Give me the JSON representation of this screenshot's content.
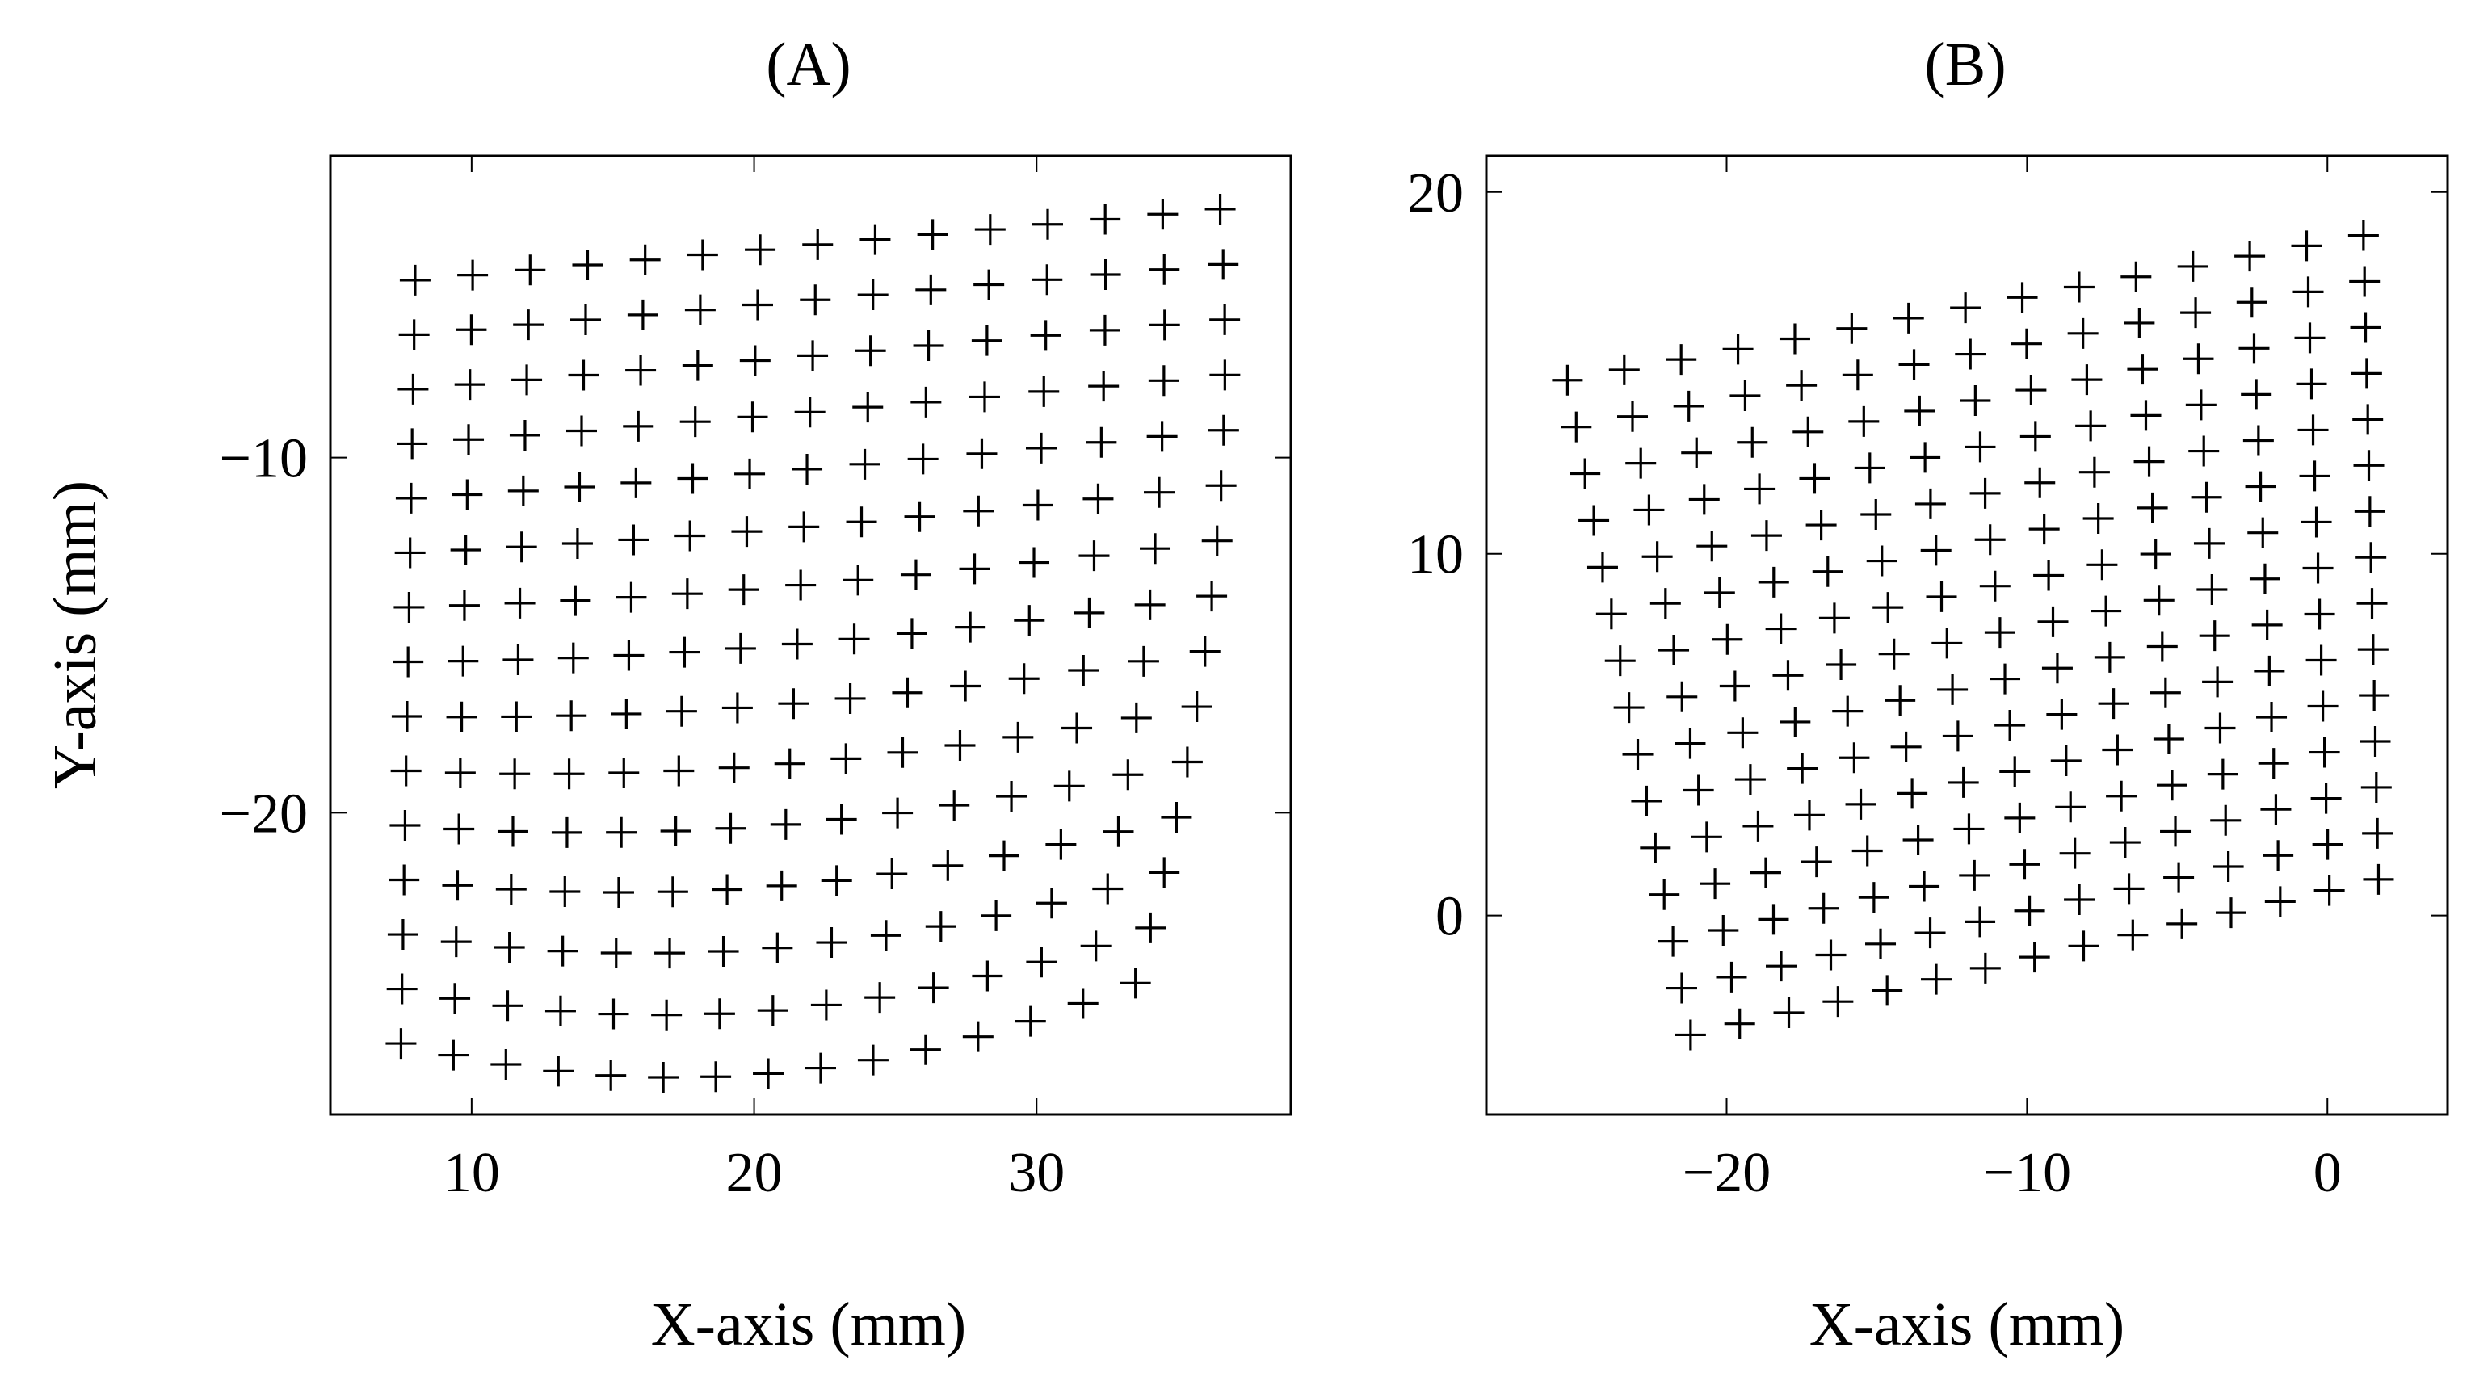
{
  "chart_data": [
    {
      "type": "scatter",
      "title": "(A)",
      "xlabel": "X-axis (mm)",
      "ylabel": "Y-axis (mm)",
      "xlim": [
        5,
        39
      ],
      "ylim": [
        -28.5,
        -1.5
      ],
      "xticks": [
        10,
        20,
        30
      ],
      "yticks": [
        -10,
        -20
      ],
      "grid": false,
      "marker": "plus",
      "grid_points": {
        "rows": 15,
        "cols": 15,
        "corners": {
          "top_left": [
            8.0,
            -5.0
          ],
          "top_right": [
            36.5,
            -3.0
          ],
          "bottom_left": [
            7.5,
            -26.5
          ],
          "bottom_right": [
            33.5,
            -24.8
          ]
        },
        "bottom_edge_sag": 1.7,
        "right_edge_bulge": 1.2
      }
    },
    {
      "type": "scatter",
      "title": "(B)",
      "xlabel": "X-axis (mm)",
      "ylabel": "",
      "xlim": [
        -28,
        4
      ],
      "ylim": [
        -5.5,
        21
      ],
      "xticks": [
        -20,
        -10,
        0
      ],
      "yticks": [
        0,
        10,
        20
      ],
      "grid": false,
      "marker": "plus",
      "grid_points": {
        "rows": 15,
        "cols": 15,
        "corners": {
          "top_left": [
            -25.3,
            14.8
          ],
          "top_right": [
            1.2,
            18.8
          ],
          "bottom_left": [
            -21.2,
            -3.3
          ],
          "bottom_right": [
            1.7,
            1.0
          ]
        }
      }
    }
  ]
}
